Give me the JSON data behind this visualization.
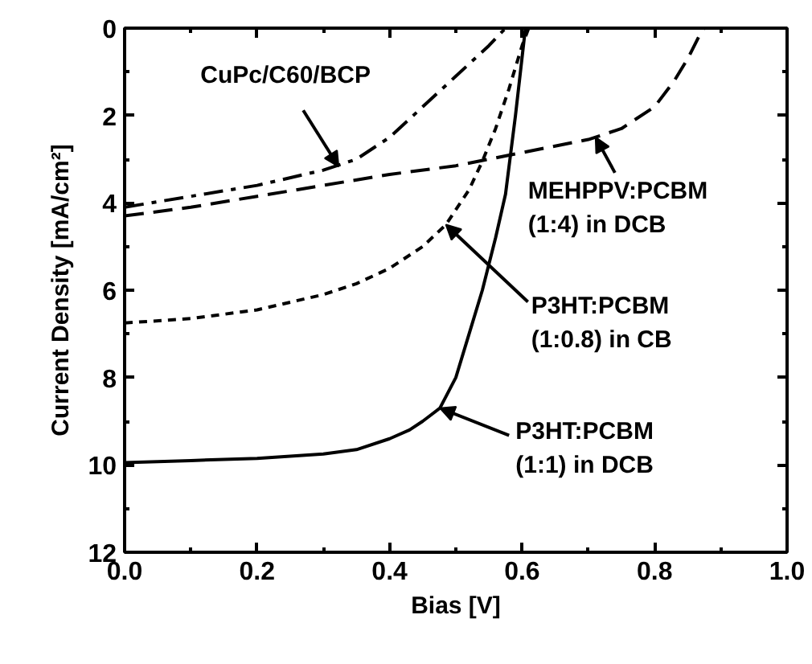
{
  "chart_data": {
    "type": "line",
    "xlabel": "Bias [V]",
    "ylabel": "Current Density [mA/cm²]",
    "xlim": [
      0.0,
      1.0
    ],
    "xticks": [
      {
        "value": 0,
        "label": "0.0"
      },
      {
        "value": 0.2,
        "label": "0.2"
      },
      {
        "value": 0.4,
        "label": "0.4"
      },
      {
        "value": 0.6,
        "label": "0.6"
      },
      {
        "value": 0.8,
        "label": "0.8"
      },
      {
        "value": 1,
        "label": "1.0"
      }
    ],
    "ylim": [
      12,
      0
    ],
    "yticks": [
      0,
      2,
      4,
      6,
      8,
      10,
      12
    ],
    "series": [
      {
        "color": "#000000",
        "line_style": "dashdot",
        "x": [
          0,
          0.1,
          0.2,
          0.3,
          0.35,
          0.4,
          0.45,
          0.5,
          0.55,
          0.575
        ],
        "values": [
          4.1,
          3.85,
          3.6,
          3.25,
          3.0,
          2.5,
          1.8,
          1.1,
          0.4,
          0
        ]
      },
      {
        "color": "#000000",
        "line_style": "dashed",
        "x": [
          0,
          0.1,
          0.2,
          0.3,
          0.4,
          0.5,
          0.55,
          0.6,
          0.7,
          0.75,
          0.8,
          0.83,
          0.85,
          0.87,
          0.875
        ],
        "values": [
          4.3,
          4.1,
          3.85,
          3.6,
          3.35,
          3.15,
          3.0,
          2.85,
          2.55,
          2.3,
          1.8,
          1.2,
          0.7,
          0.1,
          0
        ]
      },
      {
        "color": "#000000",
        "line_style": "dotted",
        "x": [
          0,
          0.1,
          0.2,
          0.3,
          0.35,
          0.4,
          0.45,
          0.485,
          0.52,
          0.54,
          0.56,
          0.58,
          0.6,
          0.61
        ],
        "values": [
          6.75,
          6.65,
          6.45,
          6.1,
          5.85,
          5.5,
          5.0,
          4.5,
          3.7,
          3.05,
          2.3,
          1.4,
          0.4,
          0
        ]
      },
      {
        "color": "#000000",
        "line_style": "solid",
        "x": [
          0,
          0.1,
          0.2,
          0.3,
          0.35,
          0.4,
          0.43,
          0.45,
          0.476,
          0.5,
          0.52,
          0.54,
          0.56,
          0.575,
          0.59,
          0.605
        ],
        "values": [
          9.95,
          9.9,
          9.85,
          9.75,
          9.65,
          9.4,
          9.2,
          9.0,
          8.7,
          8.0,
          7.0,
          6.0,
          4.8,
          3.8,
          2.0,
          0
        ]
      }
    ],
    "annotations": [
      {
        "text": "CuPc/C60/BCP",
        "x": 0.323,
        "y": 3.17
      },
      {
        "text": "MEHPPV:PCBM\n(1:4) in DCB",
        "x": 0.711,
        "y": 2.5
      },
      {
        "text": "P3HT:PCBM\n(1:0.8) in CB",
        "x": 0.485,
        "y": 4.5
      },
      {
        "text": "P3HT:PCBM\n(1:1) in DCB",
        "x": 0.476,
        "y": 8.7
      }
    ]
  }
}
